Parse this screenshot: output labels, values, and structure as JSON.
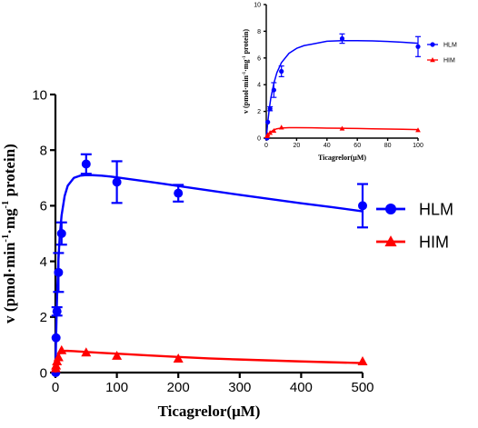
{
  "chart_data": [
    {
      "id": "main",
      "type": "scatter",
      "xlabel": "Ticagrelor(μM)",
      "ylabel": "v (pmol·min⁻¹·mg⁻¹ protein)",
      "xlim": [
        0,
        500
      ],
      "ylim": [
        0,
        10
      ],
      "xticks": [
        0,
        100,
        200,
        300,
        400,
        500
      ],
      "yticks": [
        0,
        2,
        4,
        6,
        8,
        10
      ],
      "grid": false,
      "legend_position": "right",
      "series": [
        {
          "name": "HLM",
          "color": "#0000ff",
          "marker": "circle",
          "x": [
            0.5,
            1,
            2.5,
            5,
            10,
            50,
            100,
            200,
            500
          ],
          "y": [
            0.0,
            1.25,
            2.2,
            3.6,
            5.0,
            7.5,
            6.85,
            6.45,
            6.0
          ],
          "err": [
            0.05,
            0.1,
            0.15,
            0.7,
            0.4,
            0.35,
            0.75,
            0.3,
            0.78
          ],
          "fit_x": [
            0,
            1,
            2,
            3,
            5,
            7,
            10,
            15,
            20,
            30,
            40,
            50,
            60,
            75,
            90,
            100,
            120,
            150,
            175,
            200,
            250,
            300,
            350,
            400,
            450,
            500
          ],
          "fit_y": [
            0,
            1.2,
            2.2,
            3.0,
            4.1,
            4.9,
            5.65,
            6.35,
            6.72,
            7.0,
            7.08,
            7.1,
            7.1,
            7.08,
            7.05,
            7.02,
            6.96,
            6.87,
            6.79,
            6.71,
            6.55,
            6.39,
            6.24,
            6.09,
            5.95,
            5.8
          ]
        },
        {
          "name": "HIM",
          "color": "#ff0000",
          "marker": "triangle",
          "x": [
            0.5,
            1,
            2.5,
            5,
            10,
            50,
            100,
            200,
            500
          ],
          "y": [
            0.15,
            0.25,
            0.4,
            0.55,
            0.8,
            0.72,
            0.6,
            0.5,
            0.4
          ],
          "err": [
            0.03,
            0.03,
            0.04,
            0.05,
            0.06,
            0.05,
            0.05,
            0.04,
            0.04
          ],
          "fit_x": [
            0,
            1,
            2,
            3,
            5,
            7,
            10,
            15,
            20,
            30,
            50,
            75,
            100,
            150,
            200,
            250,
            300,
            400,
            500
          ],
          "fit_y": [
            0,
            0.2,
            0.35,
            0.47,
            0.62,
            0.7,
            0.76,
            0.78,
            0.78,
            0.77,
            0.74,
            0.71,
            0.68,
            0.62,
            0.56,
            0.51,
            0.47,
            0.4,
            0.34
          ]
        }
      ]
    },
    {
      "id": "inset",
      "type": "scatter",
      "xlabel": "Ticagrelor(μM)",
      "ylabel": "v (pmol·min⁻¹·mg⁻¹ protein)",
      "xlim": [
        0,
        100
      ],
      "ylim": [
        0,
        10
      ],
      "xticks": [
        0,
        20,
        40,
        60,
        80,
        100
      ],
      "yticks": [
        0,
        2,
        4,
        6,
        8,
        10
      ],
      "grid": false,
      "legend_position": "right",
      "series": [
        {
          "name": "HLM",
          "color": "#0000ff",
          "marker": "circle",
          "x": [
            0.5,
            1,
            2.5,
            5,
            10,
            50,
            100
          ],
          "y": [
            0.0,
            1.2,
            2.2,
            3.6,
            5.0,
            7.45,
            6.85
          ],
          "err": [
            0.05,
            0.1,
            0.15,
            0.55,
            0.4,
            0.35,
            0.75
          ],
          "fit_x": [
            0,
            1,
            2,
            3,
            5,
            7,
            10,
            15,
            20,
            25,
            30,
            40,
            50,
            60,
            70,
            80,
            90,
            100
          ],
          "fit_y": [
            0,
            1.2,
            2.2,
            3.0,
            4.1,
            4.9,
            5.65,
            6.35,
            6.72,
            6.93,
            7.03,
            7.25,
            7.3,
            7.3,
            7.28,
            7.24,
            7.18,
            7.1
          ]
        },
        {
          "name": "HIM",
          "color": "#ff0000",
          "marker": "triangle",
          "x": [
            0.5,
            1,
            2.5,
            5,
            10,
            50,
            100
          ],
          "y": [
            0.15,
            0.25,
            0.4,
            0.55,
            0.8,
            0.72,
            0.6
          ],
          "err": [
            0.03,
            0.03,
            0.04,
            0.05,
            0.06,
            0.05,
            0.05
          ],
          "fit_x": [
            0,
            1,
            2,
            3,
            5,
            7,
            10,
            15,
            20,
            30,
            40,
            50,
            60,
            70,
            80,
            90,
            100
          ],
          "fit_y": [
            0,
            0.2,
            0.35,
            0.47,
            0.62,
            0.7,
            0.76,
            0.78,
            0.78,
            0.77,
            0.75,
            0.74,
            0.72,
            0.7,
            0.68,
            0.66,
            0.64
          ]
        }
      ]
    }
  ]
}
